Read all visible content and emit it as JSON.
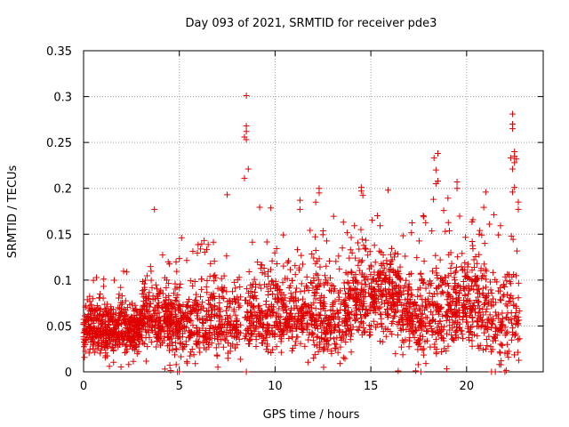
{
  "chart_data": {
    "type": "scatter",
    "title": "Day 093 of 2021, SRMTID for receiver pde3",
    "xlabel": "GPS time / hours",
    "ylabel": "SRMTID / TECUs",
    "xlim": [
      0,
      24
    ],
    "ylim": [
      0,
      0.35
    ],
    "x_ticks": [
      0,
      5,
      10,
      15,
      20
    ],
    "x_tick_labels": [
      "0",
      "5",
      "10",
      "15",
      "20"
    ],
    "y_ticks": [
      0,
      0.05,
      0.1,
      0.15,
      0.2,
      0.25,
      0.3,
      0.35
    ],
    "y_tick_labels": [
      "0",
      "0.05",
      "0.1",
      "0.15",
      "0.2",
      "0.25",
      "0.3",
      "0.35"
    ],
    "grid": true,
    "marker": "+",
    "color": "#e00000",
    "series": [
      {
        "name": "pde3",
        "segments": [
          {
            "x0": 0.0,
            "x1": 3.0,
            "count": 520,
            "center": 0.045,
            "spread": 0.022,
            "max": 0.11
          },
          {
            "x0": 3.0,
            "x1": 5.0,
            "count": 300,
            "center": 0.055,
            "spread": 0.03,
            "max": 0.13
          },
          {
            "x0": 5.0,
            "x1": 8.2,
            "count": 360,
            "center": 0.05,
            "spread": 0.03,
            "max": 0.15
          },
          {
            "x0": 8.4,
            "x1": 12.0,
            "count": 420,
            "center": 0.06,
            "spread": 0.035,
            "max": 0.18
          },
          {
            "x0": 12.0,
            "x1": 14.0,
            "count": 260,
            "center": 0.06,
            "spread": 0.04,
            "max": 0.19
          },
          {
            "x0": 14.0,
            "x1": 16.5,
            "count": 330,
            "center": 0.08,
            "spread": 0.04,
            "max": 0.2
          },
          {
            "x0": 16.5,
            "x1": 19.0,
            "count": 300,
            "center": 0.06,
            "spread": 0.04,
            "max": 0.19
          },
          {
            "x0": 19.0,
            "x1": 21.0,
            "count": 260,
            "center": 0.07,
            "spread": 0.04,
            "max": 0.2
          },
          {
            "x0": 21.0,
            "x1": 22.8,
            "count": 160,
            "center": 0.05,
            "spread": 0.04,
            "max": 0.2
          }
        ],
        "outliers": [
          {
            "x": 3.7,
            "y": 0.177
          },
          {
            "x": 8.5,
            "y": 0.301
          },
          {
            "x": 8.5,
            "y": 0.268
          },
          {
            "x": 8.5,
            "y": 0.262
          },
          {
            "x": 8.4,
            "y": 0.256
          },
          {
            "x": 8.5,
            "y": 0.253
          },
          {
            "x": 8.6,
            "y": 0.221
          },
          {
            "x": 8.4,
            "y": 0.211
          },
          {
            "x": 7.5,
            "y": 0.193
          },
          {
            "x": 11.3,
            "y": 0.187
          },
          {
            "x": 11.3,
            "y": 0.177
          },
          {
            "x": 12.3,
            "y": 0.2
          },
          {
            "x": 12.3,
            "y": 0.195
          },
          {
            "x": 14.5,
            "y": 0.201
          },
          {
            "x": 14.5,
            "y": 0.197
          },
          {
            "x": 15.9,
            "y": 0.198
          },
          {
            "x": 18.3,
            "y": 0.233
          },
          {
            "x": 18.5,
            "y": 0.238
          },
          {
            "x": 18.4,
            "y": 0.22
          },
          {
            "x": 18.5,
            "y": 0.208
          },
          {
            "x": 18.4,
            "y": 0.205
          },
          {
            "x": 19.5,
            "y": 0.207
          },
          {
            "x": 19.5,
            "y": 0.2
          },
          {
            "x": 21.0,
            "y": 0.196
          },
          {
            "x": 22.4,
            "y": 0.281
          },
          {
            "x": 22.4,
            "y": 0.27
          },
          {
            "x": 22.4,
            "y": 0.265
          },
          {
            "x": 22.5,
            "y": 0.24
          },
          {
            "x": 22.5,
            "y": 0.235
          },
          {
            "x": 22.3,
            "y": 0.233
          },
          {
            "x": 22.6,
            "y": 0.232
          },
          {
            "x": 22.5,
            "y": 0.228
          },
          {
            "x": 22.4,
            "y": 0.221
          },
          {
            "x": 22.5,
            "y": 0.201
          },
          {
            "x": 22.4,
            "y": 0.196
          },
          {
            "x": 22.7,
            "y": 0.185
          },
          {
            "x": 22.7,
            "y": 0.177
          },
          {
            "x": 4.9,
            "y": 0.0
          },
          {
            "x": 5.0,
            "y": 0.0
          },
          {
            "x": 8.5,
            "y": 0.0
          },
          {
            "x": 21.3,
            "y": 0.0
          },
          {
            "x": 21.5,
            "y": 0.0
          },
          {
            "x": 22.0,
            "y": 0.0
          }
        ]
      }
    ]
  }
}
